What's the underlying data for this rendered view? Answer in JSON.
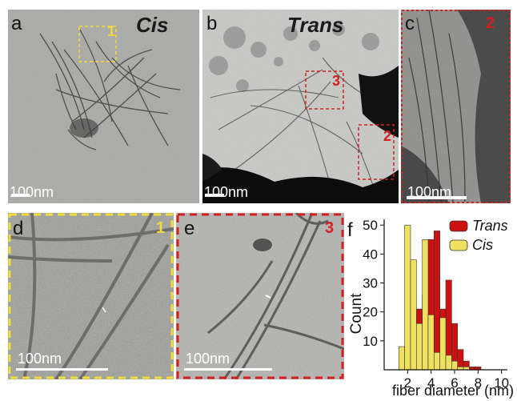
{
  "panels": {
    "a": {
      "letter": "a",
      "title": "Cis",
      "scale": "100nm",
      "roi": "1"
    },
    "b": {
      "letter": "b",
      "title": "Trans",
      "scale": "100nm",
      "roi_3": "3",
      "roi_2": "2"
    },
    "c": {
      "letter": "c",
      "roi": "2",
      "scale": "100nm"
    },
    "d": {
      "letter": "d",
      "roi": "1",
      "scale": "100nm"
    },
    "e": {
      "letter": "e",
      "roi": "3",
      "scale": "100nm"
    },
    "f": {
      "letter": "f"
    }
  },
  "colors": {
    "trans": "#cc1111",
    "cis": "#f0e060",
    "roi_yellow": "#f2dc3a",
    "roi_red": "#d42020"
  },
  "chart_data": {
    "type": "bar",
    "xlabel": "fiber diameter (nm)",
    "ylabel": "Count",
    "xlim": [
      0,
      10.5
    ],
    "ylim": [
      0,
      52
    ],
    "xticks": [
      2,
      4,
      6,
      8,
      10
    ],
    "yticks": [
      10,
      20,
      30,
      40,
      50
    ],
    "bin_width": 0.5,
    "legend_position": "top-right",
    "series": [
      {
        "name": "Trans",
        "color": "#cc1111",
        "x": [
          2.5,
          3,
          3.5,
          4,
          4.5,
          5,
          5.5,
          6,
          6.5,
          7,
          7.5,
          8
        ],
        "values": [
          1,
          21,
          26,
          45,
          48,
          21,
          31,
          16,
          7,
          3,
          1,
          1
        ]
      },
      {
        "name": "Cis",
        "color": "#f0e060",
        "x": [
          1.5,
          2,
          2.5,
          3,
          3.5,
          4,
          4.5,
          5,
          5.5,
          6,
          6.5,
          7
        ],
        "values": [
          8,
          50,
          38,
          16,
          45,
          19,
          6,
          18,
          5,
          3,
          1,
          1
        ]
      }
    ]
  }
}
